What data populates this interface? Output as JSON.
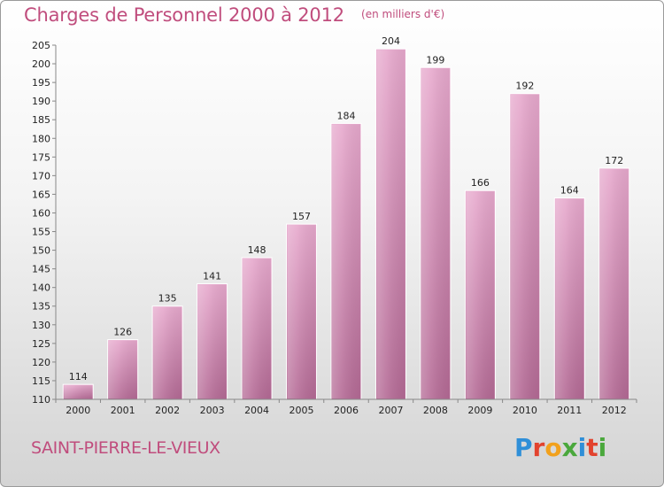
{
  "chart_data": {
    "type": "bar",
    "title": "Charges de Personnel 2000 à 2012",
    "subtitle": "(en milliers d'€)",
    "categories": [
      "2000",
      "2001",
      "2002",
      "2003",
      "2004",
      "2005",
      "2006",
      "2007",
      "2008",
      "2009",
      "2010",
      "2011",
      "2012"
    ],
    "values": [
      114,
      126,
      135,
      141,
      148,
      157,
      184,
      204,
      199,
      166,
      192,
      164,
      172
    ],
    "ylim": [
      110,
      205
    ],
    "yticks": [
      110,
      115,
      120,
      125,
      130,
      135,
      140,
      145,
      150,
      155,
      160,
      165,
      170,
      175,
      180,
      185,
      190,
      195,
      200,
      205
    ],
    "grid": false,
    "bar_color": "#d98ab5",
    "bar_color_dark": "#b66a95",
    "title_color": "#c04d7d"
  },
  "footer": {
    "city": "SAINT-PIERRE-LE-VIEUX",
    "logo": "Proxiti"
  }
}
